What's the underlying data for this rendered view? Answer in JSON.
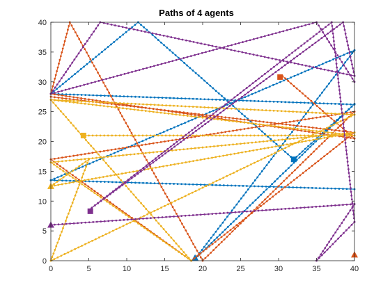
{
  "chart_data": {
    "type": "line",
    "title": "Paths of 4 agents",
    "xlabel": "",
    "ylabel": "",
    "xlim": [
      0,
      40
    ],
    "ylim": [
      0,
      40
    ],
    "xticks": [
      "0",
      "5",
      "10",
      "15",
      "20",
      "25",
      "30",
      "35",
      "40"
    ],
    "yticks": [
      "0",
      "5",
      "10",
      "15",
      "20",
      "25",
      "30",
      "35",
      "40"
    ],
    "grid": false,
    "series": [
      {
        "color": "#0072BD",
        "points": [
          [
            40,
            12
          ],
          [
            0,
            13.5
          ],
          [
            40,
            35.3
          ],
          [
            19,
            0.3
          ],
          [
            40,
            26.3
          ],
          [
            32,
            17
          ],
          [
            11.5,
            40
          ],
          [
            0,
            28
          ],
          [
            40,
            26.2
          ]
        ],
        "start": [
          19,
          0.5
        ],
        "end": [
          32,
          17
        ]
      },
      {
        "color": "#D95319",
        "points": [
          [
            0,
            27.5
          ],
          [
            40,
            21.5
          ],
          [
            18.5,
            0
          ],
          [
            0,
            17
          ],
          [
            40,
            25
          ],
          [
            20,
            0
          ],
          [
            2.5,
            40
          ],
          [
            0,
            28
          ],
          [
            40,
            20.5
          ],
          [
            30.5,
            31
          ]
        ],
        "start": [
          40,
          1
        ],
        "end": [
          30.2,
          30.8
        ]
      },
      {
        "color": "#EDB120",
        "points": [
          [
            0,
            27
          ],
          [
            18.5,
            0
          ],
          [
            0,
            16.5
          ],
          [
            40,
            21.5
          ],
          [
            0,
            12.5
          ],
          [
            5,
            17
          ],
          [
            0,
            0
          ],
          [
            40,
            24.5
          ],
          [
            0,
            27
          ],
          [
            40,
            21
          ],
          [
            4.5,
            21
          ]
        ],
        "start": [
          0,
          12.5
        ],
        "end": [
          4.3,
          21
        ]
      },
      {
        "color": "#7E2F8E",
        "points": [
          [
            0,
            6
          ],
          [
            40,
            9.5
          ],
          [
            35,
            0
          ],
          [
            40,
            6.5
          ],
          [
            37,
            40
          ],
          [
            5,
            8.5
          ],
          [
            38.5,
            40
          ],
          [
            40,
            31
          ],
          [
            6.5,
            40
          ],
          [
            0,
            28
          ],
          [
            35,
            40
          ],
          [
            40,
            30
          ]
        ],
        "start": [
          0,
          6
        ],
        "end": [
          5.2,
          8.3
        ]
      }
    ]
  }
}
